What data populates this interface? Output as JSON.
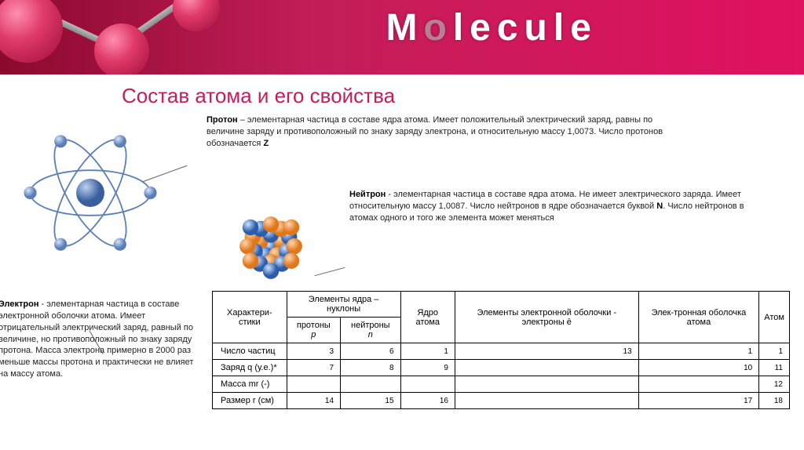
{
  "banner": {
    "text": "Molecule"
  },
  "title": "Состав атома и его свойства",
  "proton": {
    "label": "Протон",
    "text": " – элементарная частица в составе ядра атома. Имеет положительный электрический заряд, равны по величине заряду и противоположный по знаку заряду электрона, и относительную массу 1,0073. Число протонов обозначается ",
    "symbol": "Z"
  },
  "neutron": {
    "label": "Нейтрон",
    "text": " - элементарная частица в составе ядра атома. Не имеет электрического заряда. Имеет относительную массу 1,0087. Число нейтронов в ядре обозначается буквой ",
    "symbol": "N",
    "tail": ". Число нейтронов в атомах одного и того же элемента может меняться"
  },
  "electron": {
    "label": "Электрон",
    "text": " - элементарная частица в составе электронной оболочки атома. Имеет отрицательный электрический заряд, равный по величине, но противоположный по знаку заряду протона. Масса электрона примерно в 2000 раз меньше массы протона и практически не влияет на массу атома."
  },
  "table": {
    "head": {
      "char": "Характери-стики",
      "nucleons": "Элементы ядра – нуклоны",
      "protons": "протоны",
      "protons_sym": "p",
      "neutrons": "нейтроны",
      "neutrons_sym": "n",
      "nucleus": "Ядро атома",
      "shell": "Элементы электронной оболочки - электроны ē",
      "eshell": "Элек-тронная оболочка атома",
      "atom": "Атом"
    },
    "rows": [
      {
        "label": "Число частиц",
        "vals": [
          "3",
          "6",
          "1",
          "13",
          "1",
          "1"
        ]
      },
      {
        "label": "Заряд q (у.е.)*",
        "vals": [
          "7",
          "8",
          "9",
          "",
          "10",
          "11"
        ]
      },
      {
        "label": "Масса mr (-)",
        "vals": [
          "",
          "",
          "",
          "",
          "",
          "12"
        ]
      },
      {
        "label": "Размер r (см)",
        "vals": [
          "14",
          "15",
          "16",
          "",
          "17",
          "18"
        ]
      }
    ]
  }
}
